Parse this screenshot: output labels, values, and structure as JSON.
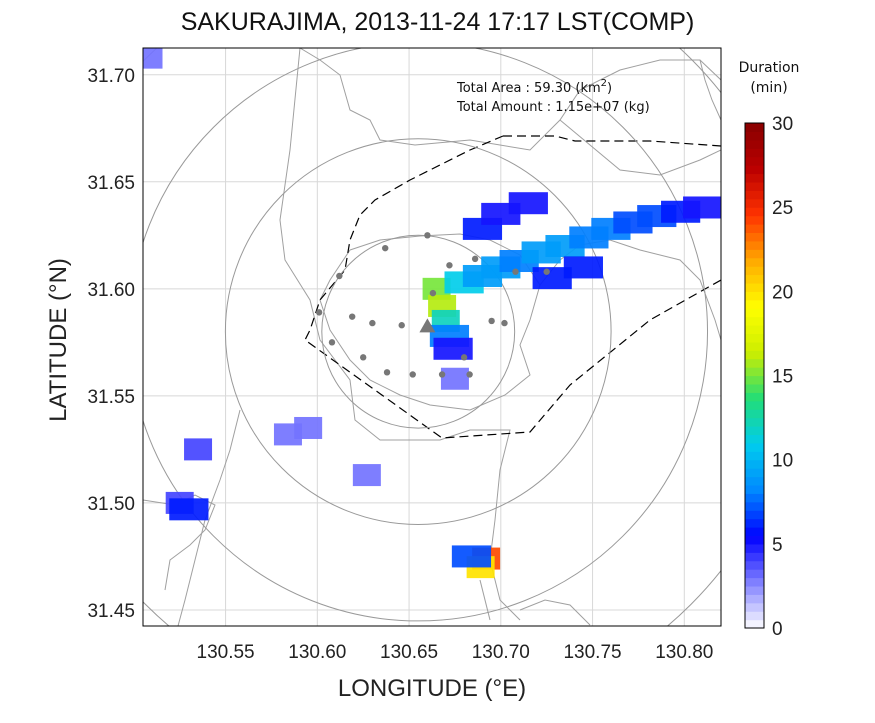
{
  "chart_data": {
    "type": "heatmap",
    "title": "SAKURAJIMA, 2013-11-24 17:17 LST(COMP)",
    "xlabel": "LONGITUDE (°E)",
    "ylabel": "LATITUDE (°N)",
    "xlim": [
      130.505,
      130.82
    ],
    "ylim": [
      31.4425,
      31.7125
    ],
    "x_ticks": [
      130.55,
      130.6,
      130.65,
      130.7,
      130.75,
      130.8
    ],
    "x_tick_labels": [
      "130.55",
      "130.60",
      "130.65",
      "130.70",
      "130.75",
      "130.80"
    ],
    "y_ticks": [
      31.45,
      31.5,
      31.55,
      31.6,
      31.65,
      31.7
    ],
    "y_tick_labels": [
      "31.45",
      "31.50",
      "31.55",
      "31.60",
      "31.65",
      "31.70"
    ],
    "grid": true,
    "colorbar": {
      "title_line1": "Duration",
      "title_line2": "(min)",
      "min": 0,
      "max": 30,
      "ticks": [
        0,
        5,
        10,
        15,
        20,
        25,
        30
      ],
      "tick_labels": [
        "0",
        "5",
        "10",
        "15",
        "20",
        "25",
        "30"
      ],
      "colors": [
        "#ffffff",
        "#8080ff",
        "#0000ff",
        "#0088ff",
        "#00ccee",
        "#22dd77",
        "#ccee00",
        "#ffff00",
        "#ffaa00",
        "#ff3300",
        "#bb0000",
        "#880000"
      ]
    },
    "annotations": {
      "total_area_label": "Total Area   : 59.30 (km",
      "total_area_sup": "2",
      "total_area_close": ")",
      "total_amount": "Total Amount : 1.15e+07 (kg)"
    },
    "vent": {
      "lon": 130.66,
      "lat": 31.582
    },
    "range_rings_center": {
      "lon": 130.655,
      "lat": 31.58
    },
    "station_points": [
      [
        130.66,
        31.625
      ],
      [
        130.637,
        31.619
      ],
      [
        130.612,
        31.606
      ],
      [
        130.601,
        31.589
      ],
      [
        130.619,
        31.587
      ],
      [
        130.63,
        31.584
      ],
      [
        130.646,
        31.583
      ],
      [
        130.608,
        31.575
      ],
      [
        130.625,
        31.568
      ],
      [
        130.638,
        31.561
      ],
      [
        130.652,
        31.56
      ],
      [
        130.668,
        31.56
      ],
      [
        130.68,
        31.568
      ],
      [
        130.695,
        31.585
      ],
      [
        130.702,
        31.584
      ],
      [
        130.686,
        31.614
      ],
      [
        130.672,
        31.611
      ],
      [
        130.708,
        31.608
      ],
      [
        130.663,
        31.598
      ],
      [
        130.683,
        31.56
      ],
      [
        130.725,
        31.608
      ]
    ],
    "ash_cells": [
      {
        "lon": 130.665,
        "lat": 31.6,
        "duration": 15
      },
      {
        "lon": 130.668,
        "lat": 31.592,
        "duration": 16
      },
      {
        "lon": 130.67,
        "lat": 31.585,
        "duration": 12
      },
      {
        "lon": 130.672,
        "lat": 31.578,
        "duration": 8
      },
      {
        "lon": 130.674,
        "lat": 31.572,
        "duration": 5
      },
      {
        "lon": 130.68,
        "lat": 31.603,
        "duration": 11
      },
      {
        "lon": 130.69,
        "lat": 31.606,
        "duration": 9
      },
      {
        "lon": 130.7,
        "lat": 31.61,
        "duration": 9
      },
      {
        "lon": 130.71,
        "lat": 31.613,
        "duration": 8
      },
      {
        "lon": 130.722,
        "lat": 31.617,
        "duration": 9
      },
      {
        "lon": 130.735,
        "lat": 31.62,
        "duration": 9
      },
      {
        "lon": 130.748,
        "lat": 31.624,
        "duration": 8
      },
      {
        "lon": 130.76,
        "lat": 31.628,
        "duration": 8
      },
      {
        "lon": 130.772,
        "lat": 31.631,
        "duration": 7
      },
      {
        "lon": 130.785,
        "lat": 31.634,
        "duration": 7
      },
      {
        "lon": 130.798,
        "lat": 31.636,
        "duration": 6
      },
      {
        "lon": 130.81,
        "lat": 31.638,
        "duration": 5
      },
      {
        "lon": 130.69,
        "lat": 31.628,
        "duration": 6
      },
      {
        "lon": 130.7,
        "lat": 31.635,
        "duration": 5
      },
      {
        "lon": 130.715,
        "lat": 31.64,
        "duration": 5
      },
      {
        "lon": 130.728,
        "lat": 31.605,
        "duration": 6
      },
      {
        "lon": 130.745,
        "lat": 31.61,
        "duration": 6
      },
      {
        "lon": 130.692,
        "lat": 31.474,
        "duration": 24
      },
      {
        "lon": 130.689,
        "lat": 31.47,
        "duration": 20
      },
      {
        "lon": 130.684,
        "lat": 31.475,
        "duration": 7
      },
      {
        "lon": 130.508,
        "lat": 31.708,
        "duration": 3
      },
      {
        "lon": 130.535,
        "lat": 31.525,
        "duration": 4
      },
      {
        "lon": 130.525,
        "lat": 31.5,
        "duration": 4
      },
      {
        "lon": 130.53,
        "lat": 31.497,
        "duration": 6
      },
      {
        "lon": 130.584,
        "lat": 31.532,
        "duration": 3
      },
      {
        "lon": 130.595,
        "lat": 31.535,
        "duration": 3
      },
      {
        "lon": 130.627,
        "lat": 31.513,
        "duration": 3
      },
      {
        "lon": 130.675,
        "lat": 31.558,
        "duration": 3
      }
    ]
  }
}
